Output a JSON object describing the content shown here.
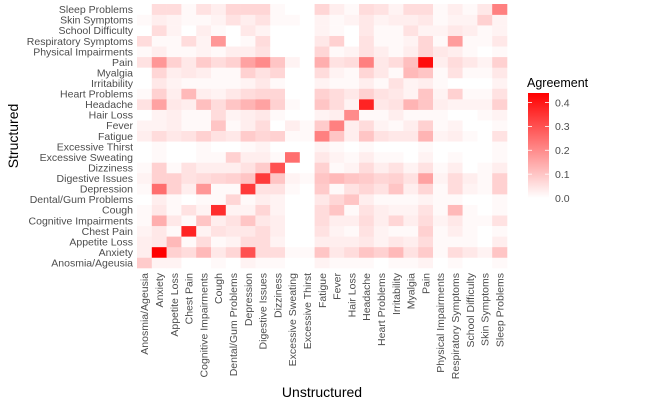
{
  "chart_data": {
    "type": "heatmap",
    "title": "",
    "xlabel": "Unstructured",
    "ylabel": "Structured",
    "categories": [
      "Anosmia/Ageusia",
      "Anxiety",
      "Appetite Loss",
      "Chest Pain",
      "Cognitive Impairments",
      "Cough",
      "Dental/Gum Problems",
      "Depression",
      "Digestive Issues",
      "Dizziness",
      "Excessive Sweating",
      "Excessive Thirst",
      "Fatigue",
      "Fever",
      "Hair Loss",
      "Headache",
      "Heart Problems",
      "Irritability",
      "Myalgia",
      "Pain",
      "Physical Impairments",
      "Respiratory Symptoms",
      "School Difficulty",
      "Skin Symptoms",
      "Sleep Problems"
    ],
    "x_order": "alphabetical left-to-right",
    "y_order": "alphabetical bottom-to-top",
    "legend": {
      "title": "Agreement",
      "position": "right",
      "ticks": [
        "0.0",
        "0.1",
        "0.2",
        "0.3",
        "0.4"
      ],
      "tick_values": [
        0,
        0.1,
        0.2,
        0.3,
        0.4
      ],
      "range": [
        0,
        0.44
      ],
      "low_color": "#ffffff",
      "high_color": "#ff0000"
    },
    "values": [
      [
        0.09,
        0.02,
        0.02,
        0.0,
        0.0,
        0.01,
        0.0,
        0.02,
        0.01,
        0.01,
        0.0,
        0.0,
        0.02,
        0.01,
        0.01,
        0.01,
        0.0,
        0.01,
        0.01,
        0.02,
        0.0,
        0.01,
        0.0,
        0.0,
        0.01
      ],
      [
        0.03,
        0.44,
        0.08,
        0.06,
        0.12,
        0.04,
        0.07,
        0.3,
        0.06,
        0.06,
        0.01,
        0.01,
        0.1,
        0.04,
        0.06,
        0.1,
        0.08,
        0.12,
        0.05,
        0.09,
        0.01,
        0.06,
        0.04,
        0.02,
        0.1
      ],
      [
        0.03,
        0.04,
        0.12,
        0.01,
        0.06,
        0.01,
        0.02,
        0.06,
        0.06,
        0.02,
        0.0,
        0.0,
        0.03,
        0.03,
        0.03,
        0.04,
        0.02,
        0.04,
        0.03,
        0.06,
        0.01,
        0.01,
        0.01,
        0.0,
        0.03
      ],
      [
        0.02,
        0.04,
        0.01,
        0.38,
        0.02,
        0.05,
        0.04,
        0.04,
        0.06,
        0.03,
        0.0,
        0.0,
        0.05,
        0.02,
        0.01,
        0.05,
        0.02,
        0.01,
        0.01,
        0.08,
        0.01,
        0.03,
        0.01,
        0.0,
        0.01
      ],
      [
        0.01,
        0.14,
        0.04,
        0.01,
        0.1,
        0.03,
        0.05,
        0.1,
        0.04,
        0.03,
        0.0,
        0.0,
        0.06,
        0.03,
        0.03,
        0.06,
        0.03,
        0.07,
        0.03,
        0.06,
        0.02,
        0.04,
        0.01,
        0.01,
        0.05
      ],
      [
        0.01,
        0.04,
        0.01,
        0.05,
        0.02,
        0.36,
        0.02,
        0.02,
        0.07,
        0.02,
        0.0,
        0.0,
        0.06,
        0.1,
        0.01,
        0.05,
        0.03,
        0.02,
        0.02,
        0.05,
        0.01,
        0.12,
        0.01,
        0.0,
        0.01
      ],
      [
        0.0,
        0.03,
        0.01,
        0.0,
        0.01,
        0.01,
        0.07,
        0.01,
        0.03,
        0.02,
        0.0,
        0.0,
        0.04,
        0.07,
        0.1,
        0.03,
        0.01,
        0.01,
        0.01,
        0.02,
        0.01,
        0.01,
        0.0,
        0.0,
        0.01
      ],
      [
        0.01,
        0.25,
        0.08,
        0.03,
        0.18,
        0.01,
        0.01,
        0.34,
        0.05,
        0.05,
        0.01,
        0.0,
        0.09,
        0.01,
        0.05,
        0.07,
        0.05,
        0.1,
        0.03,
        0.07,
        0.01,
        0.06,
        0.02,
        0.01,
        0.08
      ],
      [
        0.02,
        0.08,
        0.08,
        0.05,
        0.06,
        0.07,
        0.08,
        0.1,
        0.34,
        0.1,
        0.02,
        0.01,
        0.1,
        0.12,
        0.1,
        0.09,
        0.07,
        0.08,
        0.05,
        0.16,
        0.02,
        0.06,
        0.03,
        0.01,
        0.08
      ],
      [
        0.01,
        0.08,
        0.01,
        0.05,
        0.03,
        0.03,
        0.03,
        0.05,
        0.09,
        0.3,
        0.0,
        0.0,
        0.08,
        0.01,
        0.02,
        0.06,
        0.03,
        0.05,
        0.02,
        0.05,
        0.01,
        0.03,
        0.0,
        0.01,
        0.03
      ],
      [
        0.0,
        0.01,
        0.0,
        0.0,
        0.01,
        0.01,
        0.08,
        0.03,
        0.03,
        0.01,
        0.25,
        0.0,
        0.04,
        0.02,
        0.01,
        0.03,
        0.01,
        0.01,
        0.0,
        0.02,
        0.0,
        0.01,
        0.0,
        0.0,
        0.01
      ],
      [
        0.0,
        0.01,
        0.0,
        0.0,
        0.01,
        0.0,
        0.0,
        0.01,
        0.02,
        0.0,
        0.0,
        0.0,
        0.02,
        0.01,
        0.0,
        0.01,
        0.0,
        0.0,
        0.0,
        0.01,
        0.0,
        0.0,
        0.0,
        0.0,
        0.01
      ],
      [
        0.03,
        0.06,
        0.04,
        0.05,
        0.08,
        0.05,
        0.04,
        0.09,
        0.07,
        0.08,
        0.01,
        0.01,
        0.22,
        0.1,
        0.03,
        0.1,
        0.05,
        0.04,
        0.04,
        0.13,
        0.02,
        0.03,
        0.01,
        0.0,
        0.05
      ],
      [
        0.02,
        0.02,
        0.03,
        0.01,
        0.01,
        0.1,
        0.01,
        0.03,
        0.06,
        0.0,
        0.03,
        0.01,
        0.09,
        0.22,
        0.03,
        0.06,
        0.02,
        0.01,
        0.03,
        0.08,
        0.01,
        0.02,
        0.0,
        0.0,
        0.01
      ],
      [
        0.0,
        0.02,
        0.03,
        0.01,
        0.01,
        0.06,
        0.02,
        0.03,
        0.04,
        0.01,
        0.0,
        0.0,
        0.02,
        0.03,
        0.2,
        0.01,
        0.01,
        0.03,
        0.01,
        0.01,
        0.01,
        0.0,
        0.0,
        0.01,
        0.02
      ],
      [
        0.05,
        0.16,
        0.04,
        0.03,
        0.11,
        0.06,
        0.1,
        0.13,
        0.16,
        0.08,
        0.01,
        0.0,
        0.1,
        0.06,
        0.02,
        0.38,
        0.04,
        0.05,
        0.13,
        0.1,
        0.03,
        0.02,
        0.02,
        0.02,
        0.08
      ],
      [
        0.01,
        0.08,
        0.03,
        0.12,
        0.03,
        0.02,
        0.04,
        0.06,
        0.07,
        0.07,
        0.0,
        0.0,
        0.08,
        0.06,
        0.04,
        0.08,
        0.05,
        0.04,
        0.02,
        0.1,
        0.02,
        0.08,
        0.01,
        0.01,
        0.05
      ],
      [
        0.0,
        0.04,
        0.02,
        0.01,
        0.01,
        0.01,
        0.01,
        0.02,
        0.04,
        0.01,
        0.0,
        0.0,
        0.02,
        0.01,
        0.01,
        0.03,
        0.01,
        0.05,
        0.02,
        0.03,
        0.01,
        0.0,
        0.0,
        0.0,
        0.02
      ],
      [
        0.0,
        0.07,
        0.03,
        0.04,
        0.03,
        0.01,
        0.01,
        0.08,
        0.05,
        0.07,
        0.0,
        0.0,
        0.06,
        0.02,
        0.01,
        0.07,
        0.04,
        0.01,
        0.12,
        0.1,
        0.01,
        0.05,
        0.01,
        0.01,
        0.04
      ],
      [
        0.05,
        0.18,
        0.08,
        0.04,
        0.09,
        0.06,
        0.08,
        0.16,
        0.2,
        0.1,
        0.02,
        0.0,
        0.14,
        0.05,
        0.06,
        0.22,
        0.04,
        0.06,
        0.11,
        0.42,
        0.03,
        0.06,
        0.04,
        0.02,
        0.08
      ],
      [
        0.01,
        0.03,
        0.01,
        0.01,
        0.02,
        0.01,
        0.03,
        0.03,
        0.05,
        0.0,
        0.0,
        0.0,
        0.07,
        0.01,
        0.02,
        0.05,
        0.03,
        0.01,
        0.03,
        0.07,
        0.04,
        0.03,
        0.01,
        0.0,
        0.01
      ],
      [
        0.06,
        0.01,
        0.01,
        0.06,
        0.02,
        0.18,
        0.0,
        0.01,
        0.06,
        0.0,
        0.0,
        0.0,
        0.04,
        0.08,
        0.0,
        0.05,
        0.01,
        0.01,
        0.02,
        0.07,
        0.01,
        0.17,
        0.01,
        0.01,
        0.04
      ],
      [
        0.0,
        0.06,
        0.02,
        0.0,
        0.03,
        0.01,
        0.0,
        0.04,
        0.02,
        0.0,
        0.0,
        0.0,
        0.02,
        0.01,
        0.0,
        0.04,
        0.01,
        0.01,
        0.05,
        0.02,
        0.02,
        0.04,
        0.03,
        0.01,
        0.02
      ],
      [
        0.01,
        0.03,
        0.02,
        0.01,
        0.01,
        0.02,
        0.05,
        0.03,
        0.05,
        0.01,
        0.01,
        0.0,
        0.02,
        0.01,
        0.02,
        0.04,
        0.02,
        0.03,
        0.03,
        0.04,
        0.01,
        0.02,
        0.02,
        0.08,
        0.02
      ],
      [
        0.0,
        0.06,
        0.06,
        0.01,
        0.05,
        0.03,
        0.07,
        0.07,
        0.07,
        0.01,
        0.0,
        0.0,
        0.07,
        0.03,
        0.01,
        0.06,
        0.05,
        0.02,
        0.06,
        0.06,
        0.01,
        0.03,
        0.01,
        0.04,
        0.22
      ]
    ]
  }
}
